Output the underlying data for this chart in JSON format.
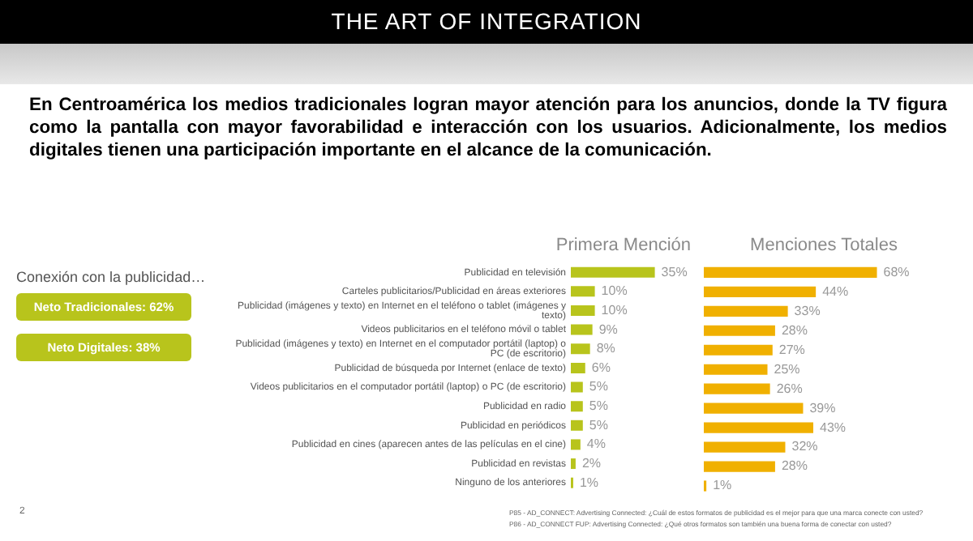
{
  "chart_data": [
    {
      "type": "other",
      "title": "THE ART OF INTEGRATION",
      "subtitle": "En Centroamérica los medios tradicionales logran mayor atención para los anuncios, donde la TV figura como la pantalla con mayor favorabilidad e interacción con los usuarios. Adicionalmente, los medios digitales tienen una participación importante en el alcance de la comunicación.",
      "annotations": [
        "Conexión con la publicidad…",
        "Neto Tradicionales: 62%",
        "Neto Digitales: 38%",
        "2"
      ]
    },
    {
      "type": "bar",
      "orientation": "horizontal",
      "title": "Primera Mención",
      "categories": [
        "Publicidad en televisión",
        "Carteles publicitarios/Publicidad en áreas exteriores",
        "Publicidad (imágenes y texto) en Internet en el teléfono o tablet (imágenes y texto)",
        "Videos publicitarios en el teléfono móvil o tablet",
        "Publicidad (imágenes y texto) en Internet en el computador portátil (laptop) o PC (de escritorio)",
        "Publicidad de búsqueda por Internet (enlace de texto)",
        "Videos publicitarios en el computador portátil (laptop) o PC (de escritorio)",
        "Publicidad en radio",
        "Publicidad en periódicos",
        "Publicidad en cines (aparecen antes de las películas en el cine)",
        "Publicidad en revistas",
        "Ninguno de los anteriores"
      ],
      "values": [
        35,
        10,
        10,
        9,
        8,
        6,
        5,
        5,
        5,
        4,
        2,
        1
      ],
      "value_labels": [
        "35%",
        "10%",
        "10%",
        "9%",
        "8%",
        "6%",
        "5%",
        "5%",
        "5%",
        "4%",
        "2%",
        "1%"
      ],
      "color": "#b8c41c",
      "tick_labels": "y"
    },
    {
      "type": "bar",
      "orientation": "horizontal",
      "title": "Menciones Totales",
      "categories": [
        null,
        null,
        null,
        null,
        null,
        null,
        null,
        null,
        null,
        null,
        null,
        null
      ],
      "values": [
        68,
        44,
        33,
        28,
        27,
        25,
        26,
        39,
        43,
        32,
        28,
        1
      ],
      "value_labels": [
        "68%",
        "44%",
        "33%",
        "28%",
        "27%",
        "25%",
        "26%",
        "39%",
        "43%",
        "32%",
        "28%",
        "1%"
      ],
      "color": "#f0b000",
      "tick_labels": false,
      "annotations": [
        "P85 - AD_CONNECT: Advertising Connected: ¿Cuál de estos formatos de publicidad es el mejor para que una marca conecte con usted?",
        "P86 - AD_CONNECT FUP: Advertising Connected: ¿Qué otros formatos son también una buena forma de conectar con usted?"
      ]
    }
  ]
}
